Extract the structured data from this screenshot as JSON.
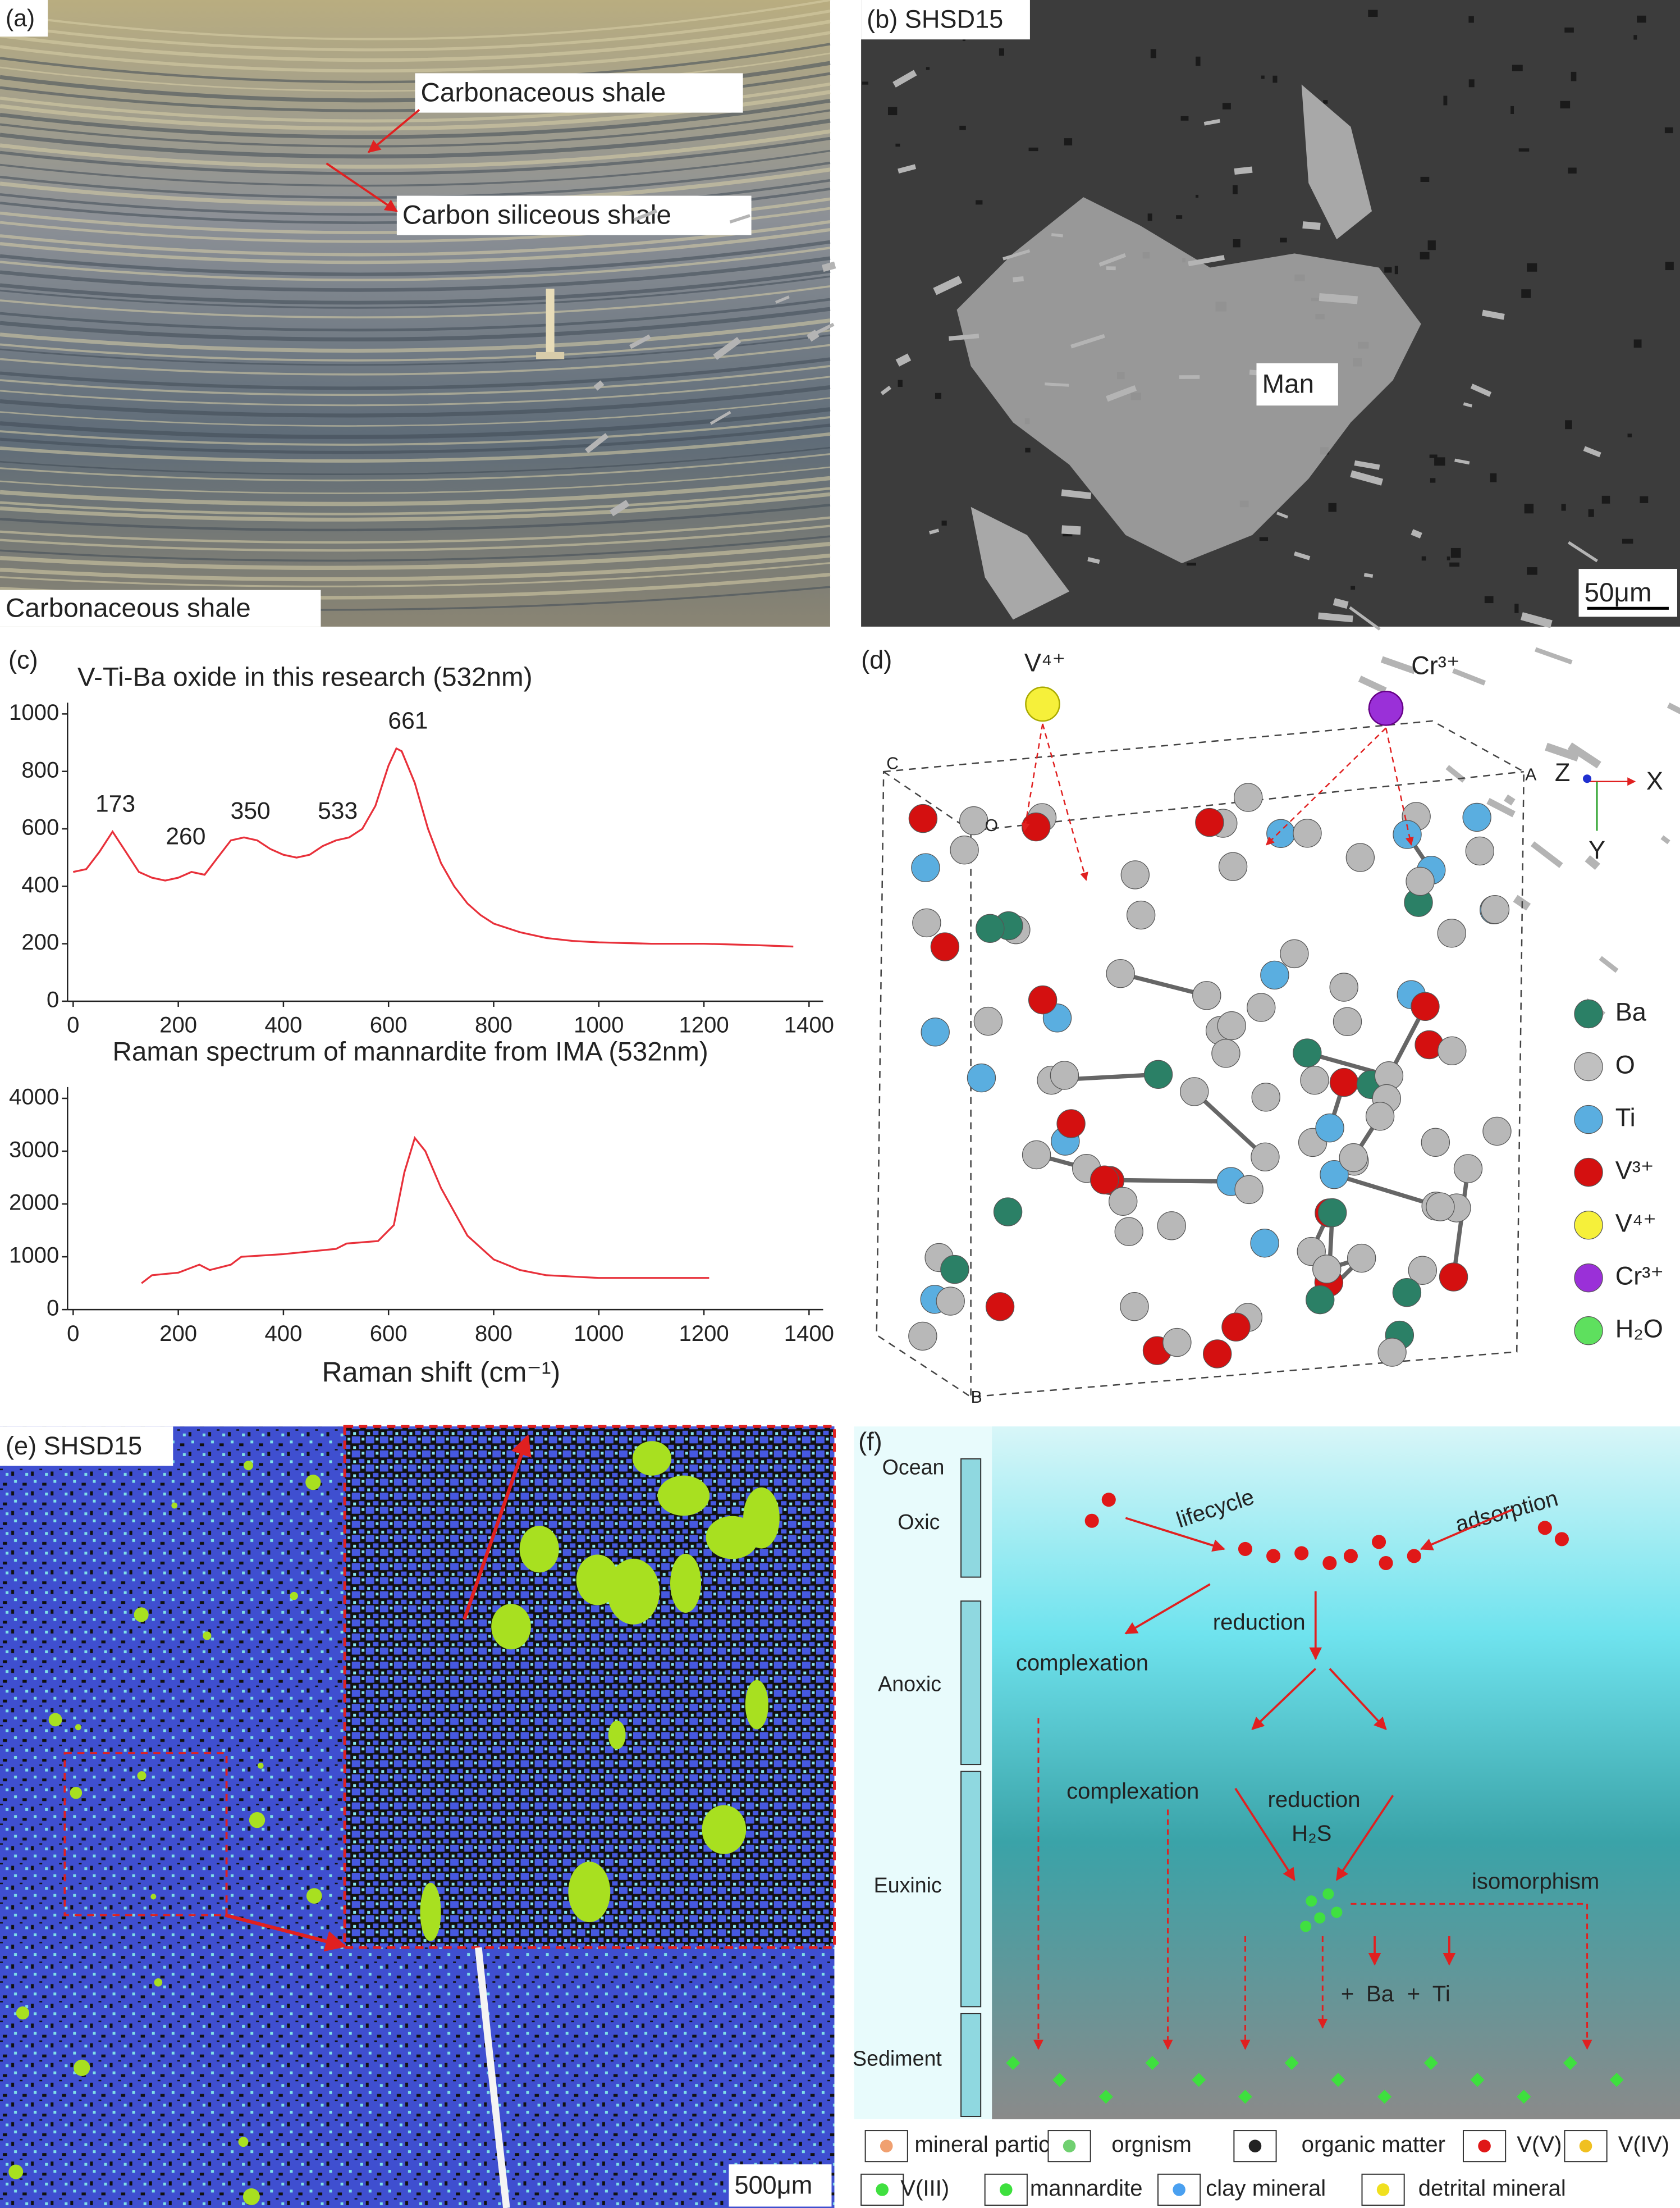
{
  "chart_data": [
    {
      "type": "line",
      "title": "V-Ti-Ba oxide in this research (532nm)",
      "x": [
        0,
        25,
        50,
        75,
        100,
        125,
        150,
        175,
        200,
        225,
        250,
        275,
        300,
        325,
        350,
        375,
        400,
        425,
        450,
        475,
        500,
        525,
        550,
        575,
        600,
        615,
        625,
        650,
        675,
        700,
        725,
        750,
        775,
        800,
        850,
        900,
        950,
        1000,
        1100,
        1200,
        1300,
        1370
      ],
      "series": [
        {
          "color": "#e8303a",
          "values": [
            450,
            460,
            520,
            590,
            520,
            450,
            430,
            420,
            430,
            450,
            440,
            500,
            560,
            570,
            560,
            530,
            510,
            500,
            510,
            540,
            560,
            570,
            600,
            680,
            820,
            880,
            870,
            760,
            600,
            480,
            400,
            340,
            300,
            270,
            240,
            220,
            210,
            205,
            200,
            200,
            195,
            190
          ]
        }
      ],
      "xlim": [
        0,
        1400
      ],
      "xticks": [
        0,
        200,
        400,
        600,
        800,
        1000,
        1200,
        1400
      ],
      "ylim": [
        0,
        1000
      ],
      "yticks": [
        0,
        200,
        400,
        600,
        800,
        1000
      ],
      "peak_labels": [
        173,
        260,
        350,
        533,
        661
      ]
    },
    {
      "type": "line",
      "title": "Raman spectrum of mannardite from IMA (532nm)",
      "x_label": "Raman shift (cm⁻¹)",
      "x": [
        130,
        150,
        200,
        240,
        260,
        300,
        320,
        400,
        500,
        520,
        580,
        610,
        630,
        650,
        670,
        700,
        750,
        800,
        850,
        900,
        1000,
        1100,
        1210
      ],
      "series": [
        {
          "color": "#e8303a",
          "values": [
            500,
            650,
            700,
            850,
            750,
            850,
            1000,
            1050,
            1150,
            1250,
            1300,
            1600,
            2600,
            3250,
            3000,
            2300,
            1400,
            950,
            750,
            650,
            600,
            600,
            600
          ]
        }
      ],
      "xlim": [
        0,
        1400
      ],
      "xticks": [
        0,
        200,
        400,
        600,
        800,
        1000,
        1200,
        1400
      ],
      "ylim": [
        0,
        4000
      ],
      "yticks": [
        0,
        1000,
        2000,
        3000,
        4000
      ]
    }
  ],
  "panels": {
    "a": {
      "label": "(a)",
      "annotations": [
        "Carbonaceous shale",
        "Carbon siliceous shale"
      ],
      "caption": "Carbonaceous shale"
    },
    "b": {
      "label": "(b) SHSD15",
      "annotation": "Man",
      "scale_bar": "50μm"
    },
    "c": {
      "label": "(c)"
    },
    "d": {
      "label": "(d)",
      "ions": [
        "V⁴⁺",
        "Cr³⁺"
      ],
      "corners": [
        "C",
        "O",
        "A",
        "B"
      ],
      "axes": [
        "Z",
        "X",
        "Y"
      ],
      "legend": [
        "Ba",
        "O",
        "Ti",
        "V³⁺",
        "V⁴⁺",
        "Cr³⁺",
        "H₂O"
      ]
    },
    "e": {
      "label": "(e) SHSD15",
      "scale_bar": "500μm"
    },
    "f": {
      "label": "(f)",
      "zones": [
        "Ocean",
        "Oxic",
        "Anoxic",
        "Euxinic",
        "Sediment"
      ],
      "processes": [
        "lifecycle",
        "adsorption",
        "reduction",
        "complexation",
        "complexation",
        "reduction",
        "H₂S",
        "isomorphism",
        "+",
        "Ba",
        "+",
        "Ti"
      ],
      "legend": [
        "mineral particle",
        "orgnism",
        "organic matter",
        "V(V)",
        "V(IV)",
        "V(III)",
        "mannardite",
        "clay mineral",
        "detrital mineral"
      ]
    }
  }
}
